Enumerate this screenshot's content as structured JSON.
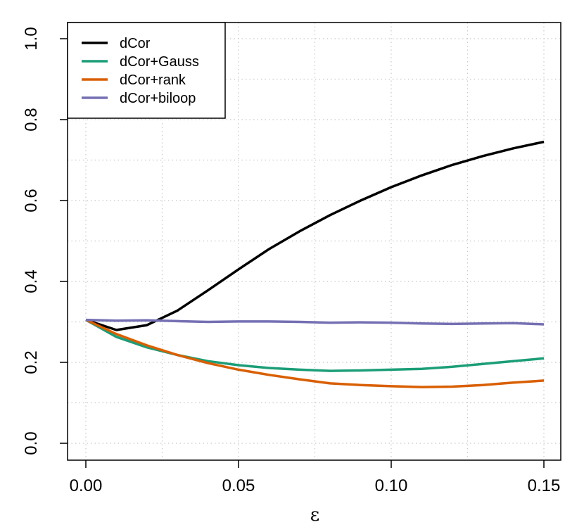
{
  "chart_data": {
    "type": "line",
    "title": "",
    "xlabel": "ε",
    "ylabel": "",
    "xlim": [
      0.0,
      0.15
    ],
    "ylim": [
      0.0,
      1.0
    ],
    "x_ticks": [
      0.0,
      0.05,
      0.1,
      0.15
    ],
    "x_tick_labels": [
      "0.00",
      "0.05",
      "0.10",
      "0.15"
    ],
    "y_ticks": [
      0.0,
      0.2,
      0.4,
      0.6,
      0.8,
      1.0
    ],
    "y_tick_labels": [
      "0.0",
      "0.2",
      "0.4",
      "0.6",
      "0.8",
      "1.0"
    ],
    "grid": true,
    "legend_position": "top-left",
    "x": [
      0.0,
      0.01,
      0.02,
      0.03,
      0.04,
      0.05,
      0.06,
      0.07,
      0.08,
      0.09,
      0.1,
      0.11,
      0.12,
      0.13,
      0.14,
      0.15
    ],
    "series": [
      {
        "name": "dCor",
        "color": "#000000",
        "values": [
          0.305,
          0.28,
          0.292,
          0.328,
          0.378,
          0.43,
          0.48,
          0.524,
          0.564,
          0.6,
          0.633,
          0.662,
          0.688,
          0.71,
          0.729,
          0.745
        ]
      },
      {
        "name": "dCor+Gauss",
        "color": "#1b9e77",
        "values": [
          0.305,
          0.263,
          0.237,
          0.218,
          0.203,
          0.193,
          0.186,
          0.182,
          0.179,
          0.18,
          0.182,
          0.184,
          0.189,
          0.196,
          0.203,
          0.21
        ]
      },
      {
        "name": "dCor+rank",
        "color": "#d95f02",
        "values": [
          0.305,
          0.27,
          0.242,
          0.218,
          0.198,
          0.182,
          0.169,
          0.158,
          0.148,
          0.144,
          0.141,
          0.139,
          0.14,
          0.144,
          0.15,
          0.155
        ]
      },
      {
        "name": "dCor+biloop",
        "color": "#7570b3",
        "values": [
          0.305,
          0.303,
          0.304,
          0.302,
          0.3,
          0.301,
          0.301,
          0.3,
          0.298,
          0.299,
          0.298,
          0.296,
          0.295,
          0.296,
          0.297,
          0.294
        ]
      }
    ]
  }
}
